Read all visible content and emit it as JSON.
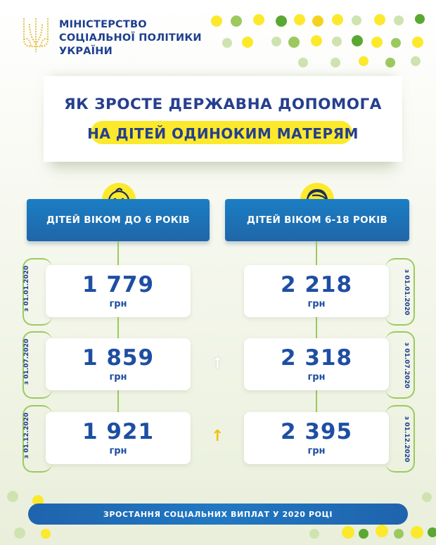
{
  "ministry": {
    "line1": "МІНІСТЕРСТВО",
    "line2": "СОЦІАЛЬНОЇ ПОЛІТИКИ",
    "line3": "УКРАЇНИ"
  },
  "title": {
    "line1": "ЯК ЗРОСТЕ ДЕРЖАВНА ДОПОМОГА",
    "line2": "НА ДІТЕЙ ОДИНОКИМ МАТЕРЯМ"
  },
  "columns": [
    {
      "header": "ДІТЕЙ ВІКОМ ДО 6 РОКІВ",
      "entries": [
        {
          "date": "з 01.01.2020",
          "amount": "1 779",
          "unit": "грн"
        },
        {
          "date": "з 01.07.2020",
          "amount": "1 859",
          "unit": "грн"
        },
        {
          "date": "з 01.12.2020",
          "amount": "1 921",
          "unit": "грн"
        }
      ]
    },
    {
      "header": "ДІТЕЙ ВІКОМ 6-18 РОКІВ",
      "entries": [
        {
          "date": "з 01.01.2020",
          "amount": "2 218",
          "unit": "грн"
        },
        {
          "date": "з 01.07.2020",
          "amount": "2 318",
          "unit": "грн"
        },
        {
          "date": "з 01.12.2020",
          "amount": "2 395",
          "unit": "грн"
        }
      ]
    }
  ],
  "arrows": [
    {
      "glyph": "↑",
      "icon": "up-arrow-icon",
      "color": "#ffffff"
    },
    {
      "glyph": "↑",
      "icon": "up-arrow-icon",
      "color": "#f2c20a"
    }
  ],
  "footer": "ЗРОСТАННЯ СОЦІАЛЬНИХ ВИПЛАТ У 2020 РОЦІ",
  "colors": {
    "navy": "#263f8e",
    "yellow": "#fce92b",
    "blue": "#1f70b8",
    "green": "#9cc95f"
  }
}
